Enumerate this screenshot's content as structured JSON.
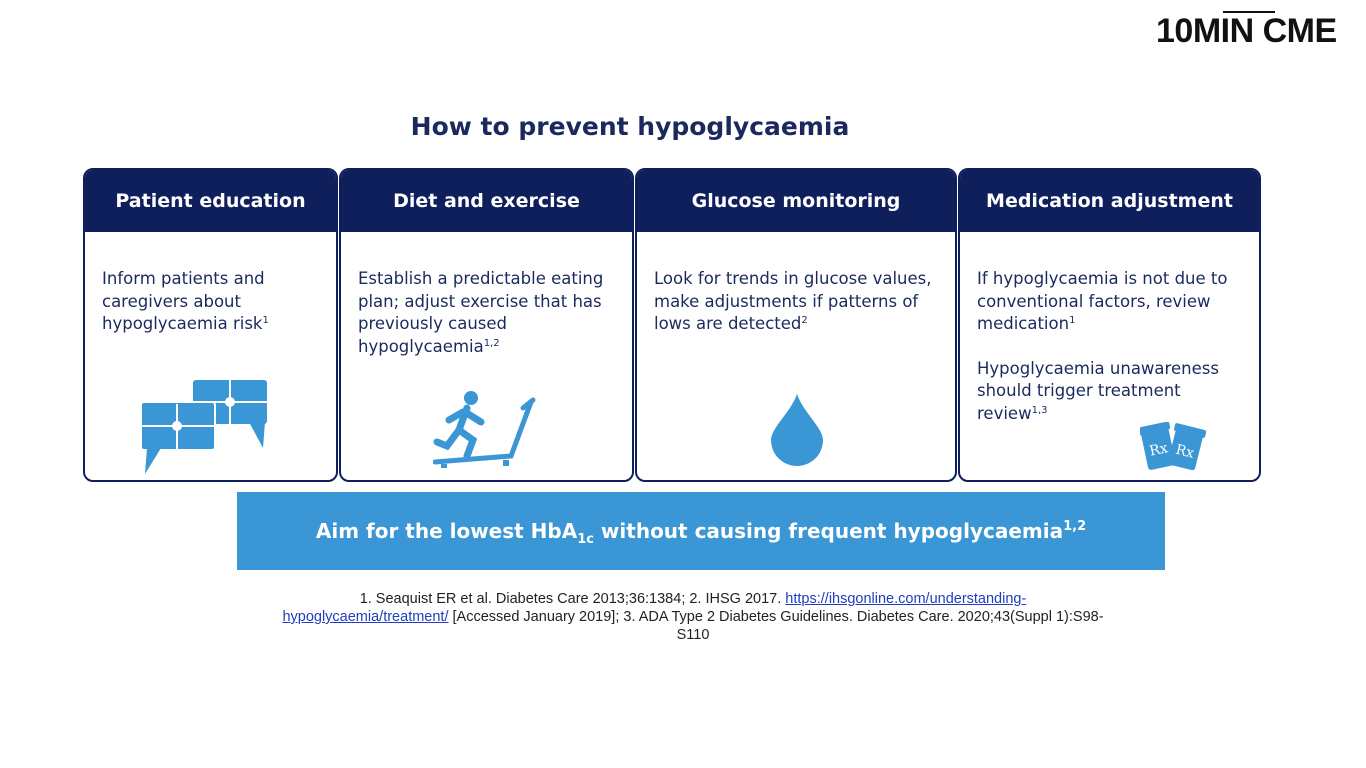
{
  "logo": "10MIN CME",
  "title": "How to prevent hypoglycaemia",
  "cards": [
    {
      "heading": "Patient education",
      "paragraphs": [
        {
          "text": "Inform patients and caregivers about hypoglycaemia risk",
          "sup": "1"
        }
      ]
    },
    {
      "heading": "Diet and exercise",
      "paragraphs": [
        {
          "text": "Establish a predictable eating plan; adjust exercise that has previously caused hypoglycaemia",
          "sup": "1,2"
        }
      ]
    },
    {
      "heading": "Glucose monitoring",
      "paragraphs": [
        {
          "text": "Look for trends in glucose values, make adjustments if patterns of lows are detected",
          "sup": "2"
        }
      ]
    },
    {
      "heading": "Medication adjustment",
      "paragraphs": [
        {
          "text": "If hypoglycaemia is not due to conventional factors, review medication",
          "sup": "1"
        },
        {
          "text": "Hypoglycaemia unawareness should trigger treatment review",
          "sup": "1,3"
        }
      ]
    }
  ],
  "banner": {
    "before": "Aim for the lowest HbA",
    "sub": "1c",
    "after": " without causing frequent hypoglycaemia",
    "sup": "1,2"
  },
  "references": {
    "part1": "1. Seaquist ER et al. Diabetes Care 2013;36:1384; 2. IHSG 2017. ",
    "link": "https://ihsgonline.com/understanding-hypoglycaemia/treatment/",
    "part2": " [Accessed January 2019]; 3. ADA Type 2 Diabetes Guidelines. Diabetes Care. 2020;43(Suppl 1):S98-S110"
  }
}
